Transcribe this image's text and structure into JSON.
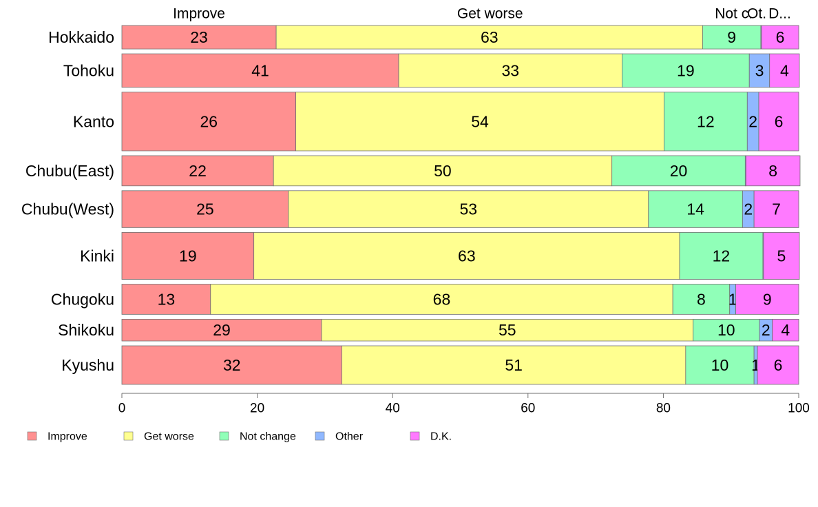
{
  "chart_data": {
    "type": "bar",
    "orientation": "horizontal",
    "stacked": true,
    "normalized_to": 100,
    "categories": [
      "Hokkaido",
      "Tohoku",
      "Kanto",
      "Chubu(East)",
      "Chubu(West)",
      "Kinki",
      "Chugoku",
      "Shikoku",
      "Kyushu"
    ],
    "weights": [
      0.7,
      1.0,
      1.75,
      0.9,
      1.1,
      1.4,
      0.9,
      0.65,
      1.15
    ],
    "series": [
      {
        "name": "Improve",
        "color": "#ff9090",
        "values": [
          22.8,
          40.9,
          25.7,
          22.4,
          24.6,
          19.5,
          13.1,
          29.5,
          32.5
        ]
      },
      {
        "name": "Get worse",
        "color": "#ffff90",
        "values": [
          63.0,
          33.0,
          54.4,
          50.0,
          53.2,
          62.9,
          68.3,
          54.9,
          50.8
        ]
      },
      {
        "name": "Not change",
        "color": "#90ffb8",
        "values": [
          8.6,
          18.8,
          12.3,
          19.7,
          13.9,
          12.3,
          8.4,
          9.8,
          10.1
        ]
      },
      {
        "name": "Other",
        "color": "#90b8ff",
        "values": [
          0.1,
          3.0,
          1.7,
          0.1,
          1.7,
          0.1,
          0.9,
          1.9,
          0.5
        ]
      },
      {
        "name": "D.K.",
        "color": "#ff7aff",
        "values": [
          5.5,
          4.4,
          5.9,
          8.0,
          6.6,
          5.3,
          9.3,
          3.9,
          6.1
        ]
      }
    ],
    "labels": [
      [
        "23",
        "63",
        "9",
        "",
        "6"
      ],
      [
        "41",
        "33",
        "19",
        "3",
        "4"
      ],
      [
        "26",
        "54",
        "12",
        "2",
        "6"
      ],
      [
        "22",
        "50",
        "20",
        "",
        "8"
      ],
      [
        "25",
        "53",
        "14",
        "2",
        "7"
      ],
      [
        "19",
        "63",
        "12",
        "",
        "5"
      ],
      [
        "13",
        "68",
        "8",
        "1",
        "9"
      ],
      [
        "29",
        "55",
        "10",
        "2",
        "4"
      ],
      [
        "32",
        "51",
        "10",
        "1",
        "6"
      ]
    ],
    "top_labels": [
      {
        "text": "Improve",
        "x": 11.4
      },
      {
        "text": "Get worse",
        "x": 54.4
      },
      {
        "text": "Not c.",
        "x": 90.4
      },
      {
        "text": "Ot.",
        "x": 93.8
      },
      {
        "text": "D...",
        "x": 97.2
      }
    ],
    "x_ticks": [
      "0",
      "20",
      "40",
      "60",
      "80",
      "100"
    ],
    "xlim": [
      0,
      100
    ],
    "grid": false,
    "legend_position": "bottom-left"
  }
}
